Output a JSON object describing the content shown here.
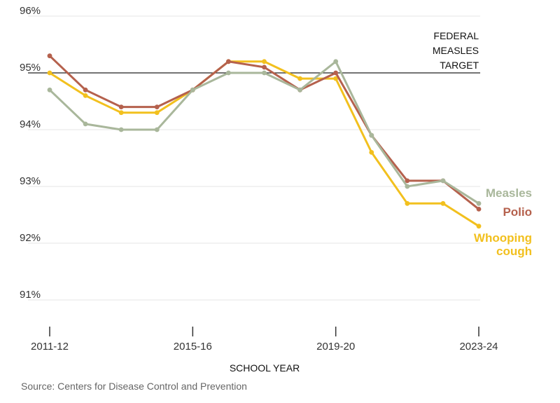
{
  "chart_data": {
    "type": "line",
    "title": "",
    "xlabel": "SCHOOL YEAR",
    "ylabel": "",
    "ylim": [
      90.6,
      96.2
    ],
    "yticks": [
      {
        "value": 96,
        "label": "96%"
      },
      {
        "value": 95,
        "label": "95%"
      },
      {
        "value": 94,
        "label": "94%"
      },
      {
        "value": 93,
        "label": "93%"
      },
      {
        "value": 92,
        "label": "92%"
      },
      {
        "value": 91,
        "label": "91%"
      }
    ],
    "x": [
      "2011-12",
      "2012-13",
      "2013-14",
      "2014-15",
      "2015-16",
      "2016-17",
      "2017-18",
      "2018-19",
      "2019-20",
      "2020-21",
      "2021-22",
      "2022-23",
      "2023-24"
    ],
    "xticks": [
      {
        "index": 0,
        "label": "2011-12"
      },
      {
        "index": 4,
        "label": "2015-16"
      },
      {
        "index": 8,
        "label": "2019-20"
      },
      {
        "index": 12,
        "label": "2023-24"
      }
    ],
    "target": {
      "value": 95,
      "label_lines": [
        "FEDERAL",
        "MEASLES",
        "TARGET"
      ]
    },
    "series": [
      {
        "name": "Measles",
        "label_lines": [
          "Measles"
        ],
        "color": "#a9b79b",
        "values": [
          94.7,
          94.1,
          94.0,
          94.0,
          94.7,
          95.0,
          95.0,
          94.7,
          95.2,
          93.9,
          93.0,
          93.1,
          92.7
        ]
      },
      {
        "name": "Polio",
        "label_lines": [
          "Polio"
        ],
        "color": "#b5614d",
        "values": [
          95.3,
          94.7,
          94.4,
          94.4,
          94.7,
          95.2,
          95.1,
          94.7,
          95.0,
          93.9,
          93.1,
          93.1,
          92.6
        ]
      },
      {
        "name": "Whooping cough",
        "label_lines": [
          "Whooping",
          "cough"
        ],
        "color": "#f2c01e",
        "values": [
          95.0,
          94.6,
          94.3,
          94.3,
          94.7,
          95.2,
          95.2,
          94.9,
          94.9,
          93.6,
          92.7,
          92.7,
          92.3
        ]
      }
    ],
    "source": "Source: Centers for Disease Control and Prevention"
  }
}
